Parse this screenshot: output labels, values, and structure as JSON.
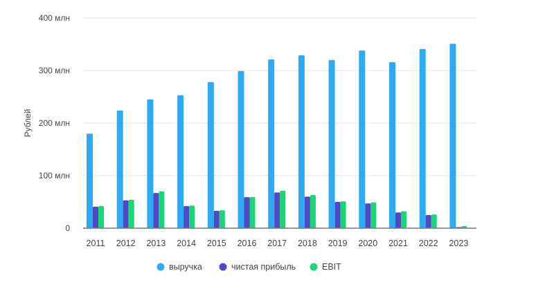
{
  "chart_data": {
    "type": "bar",
    "title": "",
    "xlabel": "",
    "ylabel": "Рублей",
    "ylim": [
      0,
      400
    ],
    "yticks": [
      0,
      100,
      200,
      300,
      400
    ],
    "ytick_labels": [
      "0",
      "100 млн",
      "200 млн",
      "300 млн",
      "400 млн"
    ],
    "grid": true,
    "legend_position": "bottom",
    "categories": [
      "2011",
      "2012",
      "2013",
      "2014",
      "2015",
      "2016",
      "2017",
      "2018",
      "2019",
      "2020",
      "2021",
      "2022",
      "2023"
    ],
    "series": [
      {
        "name": "выручка",
        "color": "#2eaaf5",
        "values": [
          180,
          224,
          245,
          253,
          278,
          299,
          321,
          329,
          320,
          338,
          316,
          341,
          351
        ]
      },
      {
        "name": "чистая прибыль",
        "color": "#4f49c6",
        "values": [
          41,
          53,
          67,
          42,
          33,
          59,
          68,
          60,
          50,
          47,
          30,
          25,
          2
        ]
      },
      {
        "name": "EBIT",
        "color": "#1ad773",
        "values": [
          42,
          54,
          70,
          43,
          34,
          59,
          71,
          63,
          51,
          49,
          32,
          26,
          4
        ]
      }
    ]
  }
}
